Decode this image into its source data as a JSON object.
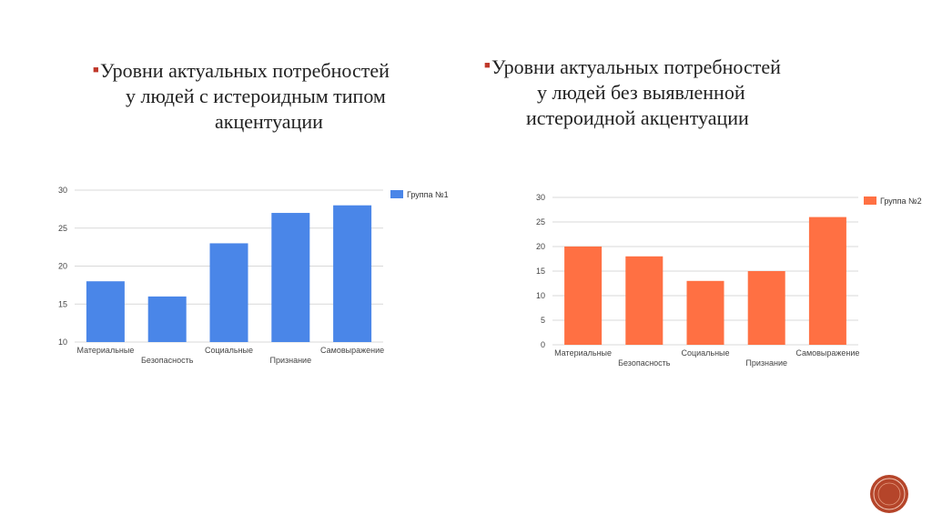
{
  "slide": {
    "heading_left": [
      "Уровни актуальных потребностей",
      "у людей с истероидным типом",
      "акцентуации"
    ],
    "heading_right": [
      "Уровни актуальных потребностей",
      "у людей без выявленной",
      "истероидной акцентуации"
    ],
    "accent_color": "#c0392b",
    "logo_icon": "circular-seal-logo"
  },
  "chart_data": [
    {
      "type": "bar",
      "categories": [
        "Материальные",
        "Безопасность",
        "Социальные",
        "Признание",
        "Самовыражение"
      ],
      "series": [
        {
          "name": "Группа №1",
          "values": [
            18,
            16,
            23,
            27,
            28
          ],
          "color": "#4a86e8"
        }
      ],
      "title": "",
      "xlabel": "",
      "ylabel": "",
      "ylim": [
        10,
        30
      ],
      "yticks": [
        10,
        15,
        20,
        25,
        30
      ],
      "grid": true,
      "legend": "top-right"
    },
    {
      "type": "bar",
      "categories": [
        "Материальные",
        "Безопасность",
        "Социальные",
        "Признание",
        "Самовыражение"
      ],
      "series": [
        {
          "name": "Группа №2",
          "values": [
            20,
            18,
            13,
            15,
            26
          ],
          "color": "#ff7043"
        }
      ],
      "title": "",
      "xlabel": "",
      "ylabel": "",
      "ylim": [
        0,
        30
      ],
      "yticks": [
        0,
        5,
        10,
        15,
        20,
        25,
        30
      ],
      "grid": true,
      "legend": "top-right"
    }
  ]
}
